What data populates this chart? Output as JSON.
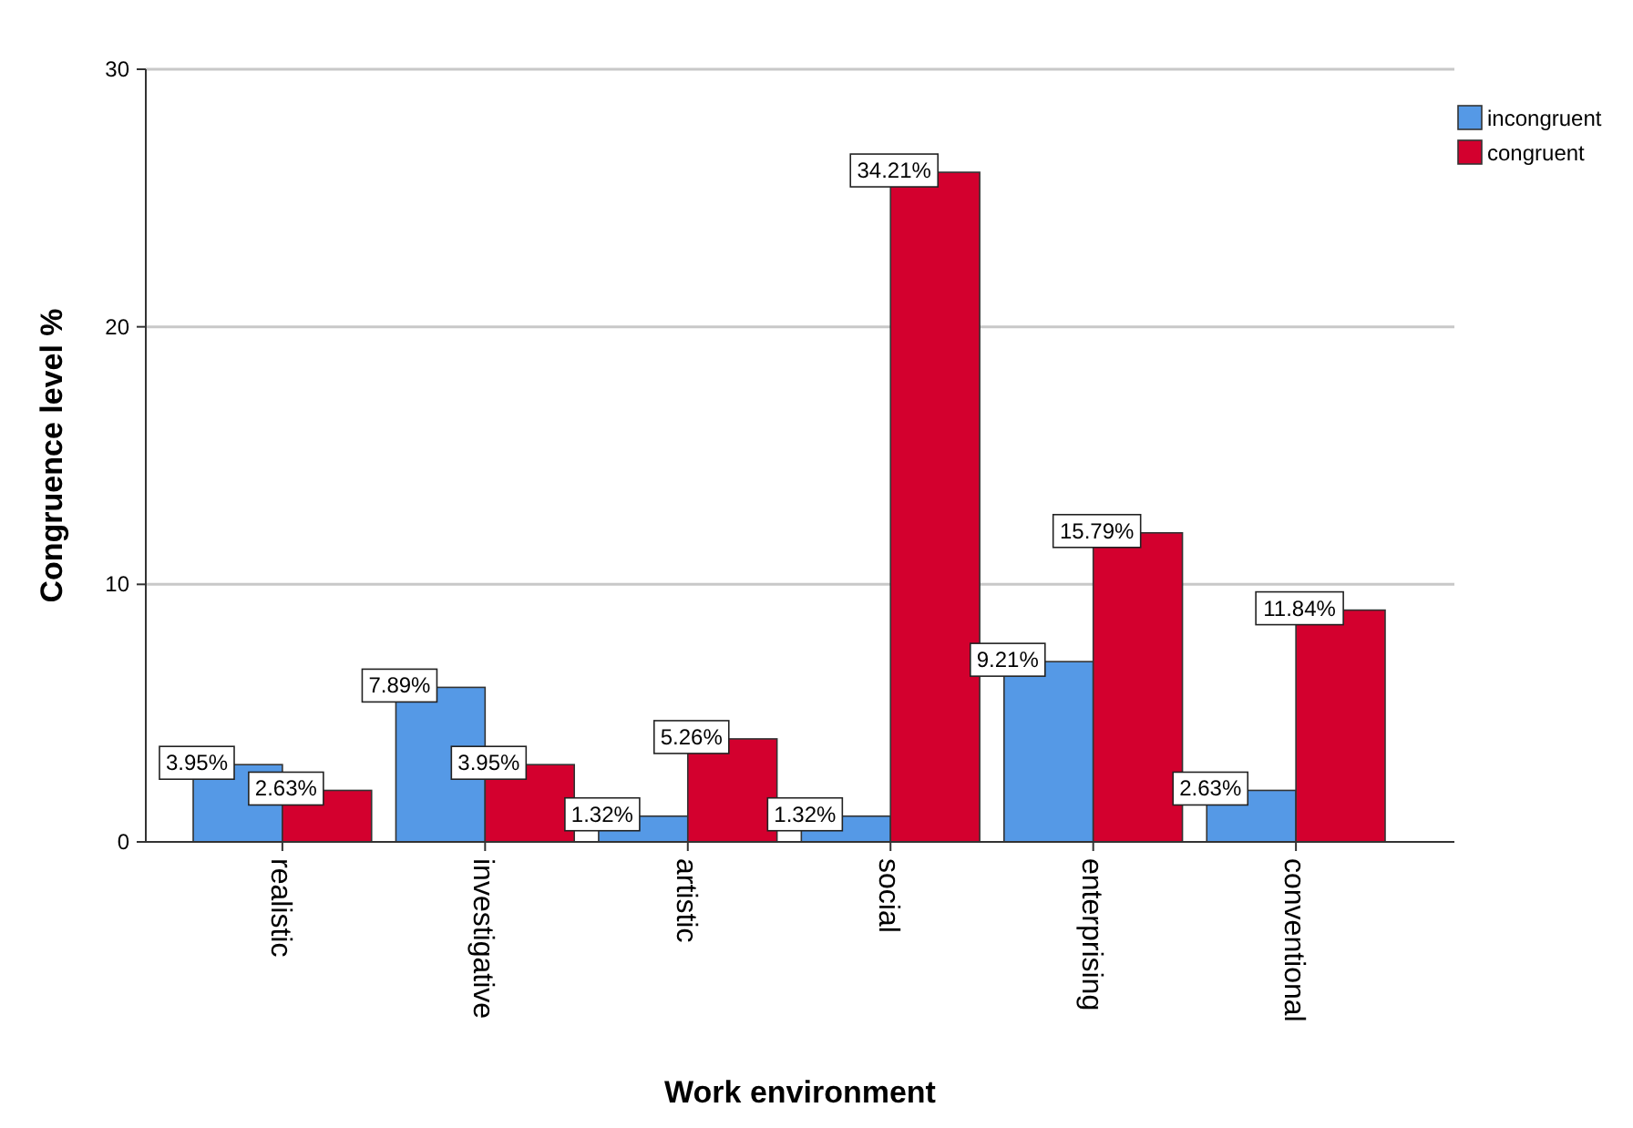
{
  "chart_data": {
    "type": "bar",
    "xlabel": "Work environment",
    "ylabel": "Congruence level %",
    "categories": [
      "realistic",
      "investigative",
      "artistic",
      "social",
      "enterprising",
      "conventional"
    ],
    "series": [
      {
        "name": "incongruent",
        "color": "#5599e6",
        "values": [
          3,
          6,
          1,
          1,
          7,
          2
        ]
      },
      {
        "name": "congruent",
        "color": "#d3002e",
        "values": [
          2,
          3,
          4,
          26,
          12,
          9
        ]
      }
    ],
    "annotations": [
      {
        "text": "3.95%",
        "x": "realistic",
        "y": 3
      },
      {
        "text": "2.63%",
        "x": "realistic",
        "y": 2
      },
      {
        "text": "7.89%",
        "x": "investigative",
        "y": 6
      },
      {
        "text": "3.95%",
        "x": "investigative",
        "y": 3
      },
      {
        "text": "1.32%",
        "x": "artistic",
        "y": 1
      },
      {
        "text": "5.26%",
        "x": "artistic",
        "y": 4
      },
      {
        "text": "1.32%",
        "x": "social",
        "y": 1
      },
      {
        "text": "34.21%",
        "x": "social",
        "y": 26
      },
      {
        "text": "9.21%",
        "x": "enterprising",
        "y": 7
      },
      {
        "text": "15.79%",
        "x": "enterprising",
        "y": 12
      },
      {
        "text": "2.63%",
        "x": "conventional",
        "y": 2
      },
      {
        "text": "11.84%",
        "x": "conventional",
        "y": 9
      }
    ],
    "ylim": [
      0,
      30
    ],
    "yticks": [
      0,
      10,
      20,
      30
    ],
    "grid": "y",
    "legend": "top right"
  }
}
